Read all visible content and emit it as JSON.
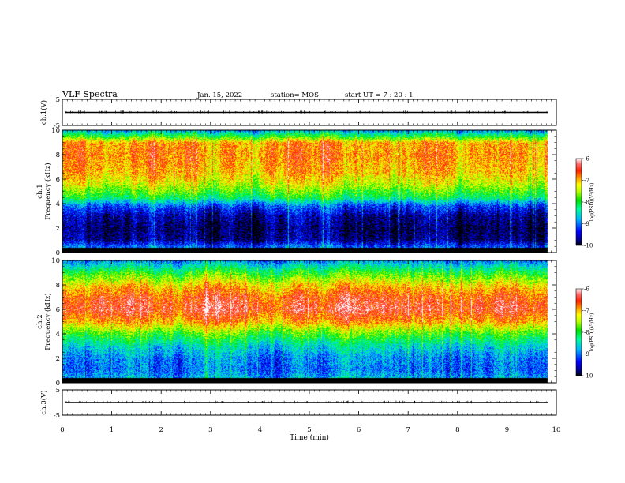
{
  "header": {
    "title": "VLF Spectra",
    "date": "Jan. 15, 2022",
    "station": "station= MOS",
    "start": "start  UT  =   7 : 20 : 1"
  },
  "chart_data": [
    {
      "type": "line",
      "id": "ch1-waveform",
      "ylabel": "ch.1(V)",
      "ylim": [
        -5,
        5
      ],
      "y_ticks": [
        "5",
        "-5"
      ],
      "x_range": [
        0,
        10
      ],
      "data_extent": [
        0,
        9.83
      ],
      "trace_level": 0,
      "color": "#000000"
    },
    {
      "type": "heatmap",
      "id": "ch1-spectrogram",
      "ylabel": "ch.1 Frequency (kHz)",
      "ylim": [
        0,
        10
      ],
      "y_ticks": [
        "0",
        "2",
        "4",
        "6",
        "8",
        "10"
      ],
      "x_range": [
        0,
        10
      ],
      "data_extent": [
        0,
        9.83
      ],
      "profile_kHz_vs_log_psd": [
        [
          0,
          -8.8
        ],
        [
          0.5,
          -9.1
        ],
        [
          1,
          -9.7
        ],
        [
          2,
          -9.8
        ],
        [
          3,
          -9.6
        ],
        [
          3.8,
          -9.1
        ],
        [
          4.5,
          -8.1
        ],
        [
          5.5,
          -7.4
        ],
        [
          6.5,
          -7.0
        ],
        [
          8,
          -6.8
        ],
        [
          9,
          -6.9
        ],
        [
          9.5,
          -7.9
        ],
        [
          10,
          -8.8
        ]
      ],
      "colorbar": {
        "label": "log(PSD)(V²/Hz)",
        "ticks": [
          "-6",
          "-7",
          "-8",
          "-9",
          "-10"
        ],
        "range": [
          -10,
          -6
        ]
      }
    },
    {
      "type": "heatmap",
      "id": "ch2-spectrogram",
      "ylabel": "ch.2 Frequency (kHz)",
      "ylim": [
        0,
        10
      ],
      "y_ticks": [
        "0",
        "2",
        "4",
        "6",
        "8",
        "10"
      ],
      "x_range": [
        0,
        10
      ],
      "data_extent": [
        0,
        9.83
      ],
      "profile_kHz_vs_log_psd": [
        [
          0,
          -8.6
        ],
        [
          1,
          -9.0
        ],
        [
          2,
          -8.9
        ],
        [
          3,
          -8.5
        ],
        [
          4,
          -7.8
        ],
        [
          5,
          -6.9
        ],
        [
          6,
          -6.4
        ],
        [
          7,
          -6.6
        ],
        [
          8,
          -7.1
        ],
        [
          9,
          -7.9
        ],
        [
          10,
          -8.9
        ]
      ],
      "colorbar": {
        "label": "log(PSD)(V²/Hz)",
        "ticks": [
          "-6",
          "-7",
          "-8",
          "-9",
          "-10"
        ],
        "range": [
          -10,
          -6
        ]
      }
    },
    {
      "type": "line",
      "id": "ch3-waveform",
      "ylabel": "ch.3(V)",
      "ylim": [
        -5,
        5
      ],
      "y_ticks": [
        "5",
        "-5"
      ],
      "x_range": [
        0,
        10
      ],
      "data_extent": [
        0,
        9.83
      ],
      "trace_level": 0,
      "color": "#000000"
    }
  ],
  "x_axis": {
    "label": "Time (min)",
    "ticks": [
      "0",
      "1",
      "2",
      "3",
      "4",
      "5",
      "6",
      "7",
      "8",
      "9",
      "10"
    ]
  }
}
